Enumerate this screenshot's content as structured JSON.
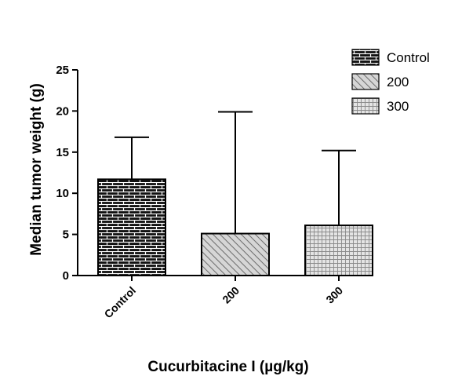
{
  "chart_data": {
    "type": "bar",
    "categories": [
      "Control",
      "200",
      "300"
    ],
    "values": [
      11.7,
      5.1,
      6.1
    ],
    "error_upper": [
      16.8,
      19.9,
      15.2
    ],
    "ylabel": "Median tumor weight (g)",
    "xlabel": "Cucurbitacine I (µg/kg)",
    "ylim": [
      0,
      25
    ],
    "yticks": [
      0,
      5,
      10,
      15,
      20,
      25
    ],
    "grid": false,
    "legend": {
      "position": "top-right",
      "entries": [
        "Control",
        "200",
        "300"
      ]
    },
    "bar_patterns": [
      "brick",
      "diagonal",
      "grid"
    ],
    "colors": {
      "brick_fill": "#111111",
      "brick_mortar": "#ffffff",
      "diagonal_fill": "#d6d6d6",
      "diagonal_line": "#6e6e6e",
      "grid_fill": "#e4e4e4",
      "grid_line": "#8a8a8a",
      "axis": "#000000"
    }
  }
}
